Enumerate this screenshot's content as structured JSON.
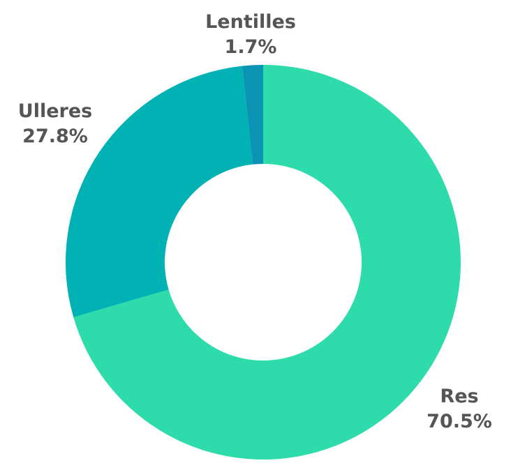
{
  "chart_data": {
    "type": "pie",
    "variant": "donut",
    "title": "",
    "categories": [
      "Res",
      "Ulleres",
      "Lentilles"
    ],
    "values": [
      70.5,
      27.8,
      1.7
    ],
    "value_labels": [
      "70.5%",
      "27.8%",
      "1.7%"
    ],
    "unit": "%",
    "colors": [
      "#2ddcaa",
      "#00b2b4",
      "#0a93b2"
    ],
    "start_angle": "12 o'clock",
    "direction": "clockwise",
    "legend": "none (labels outside slices)"
  }
}
